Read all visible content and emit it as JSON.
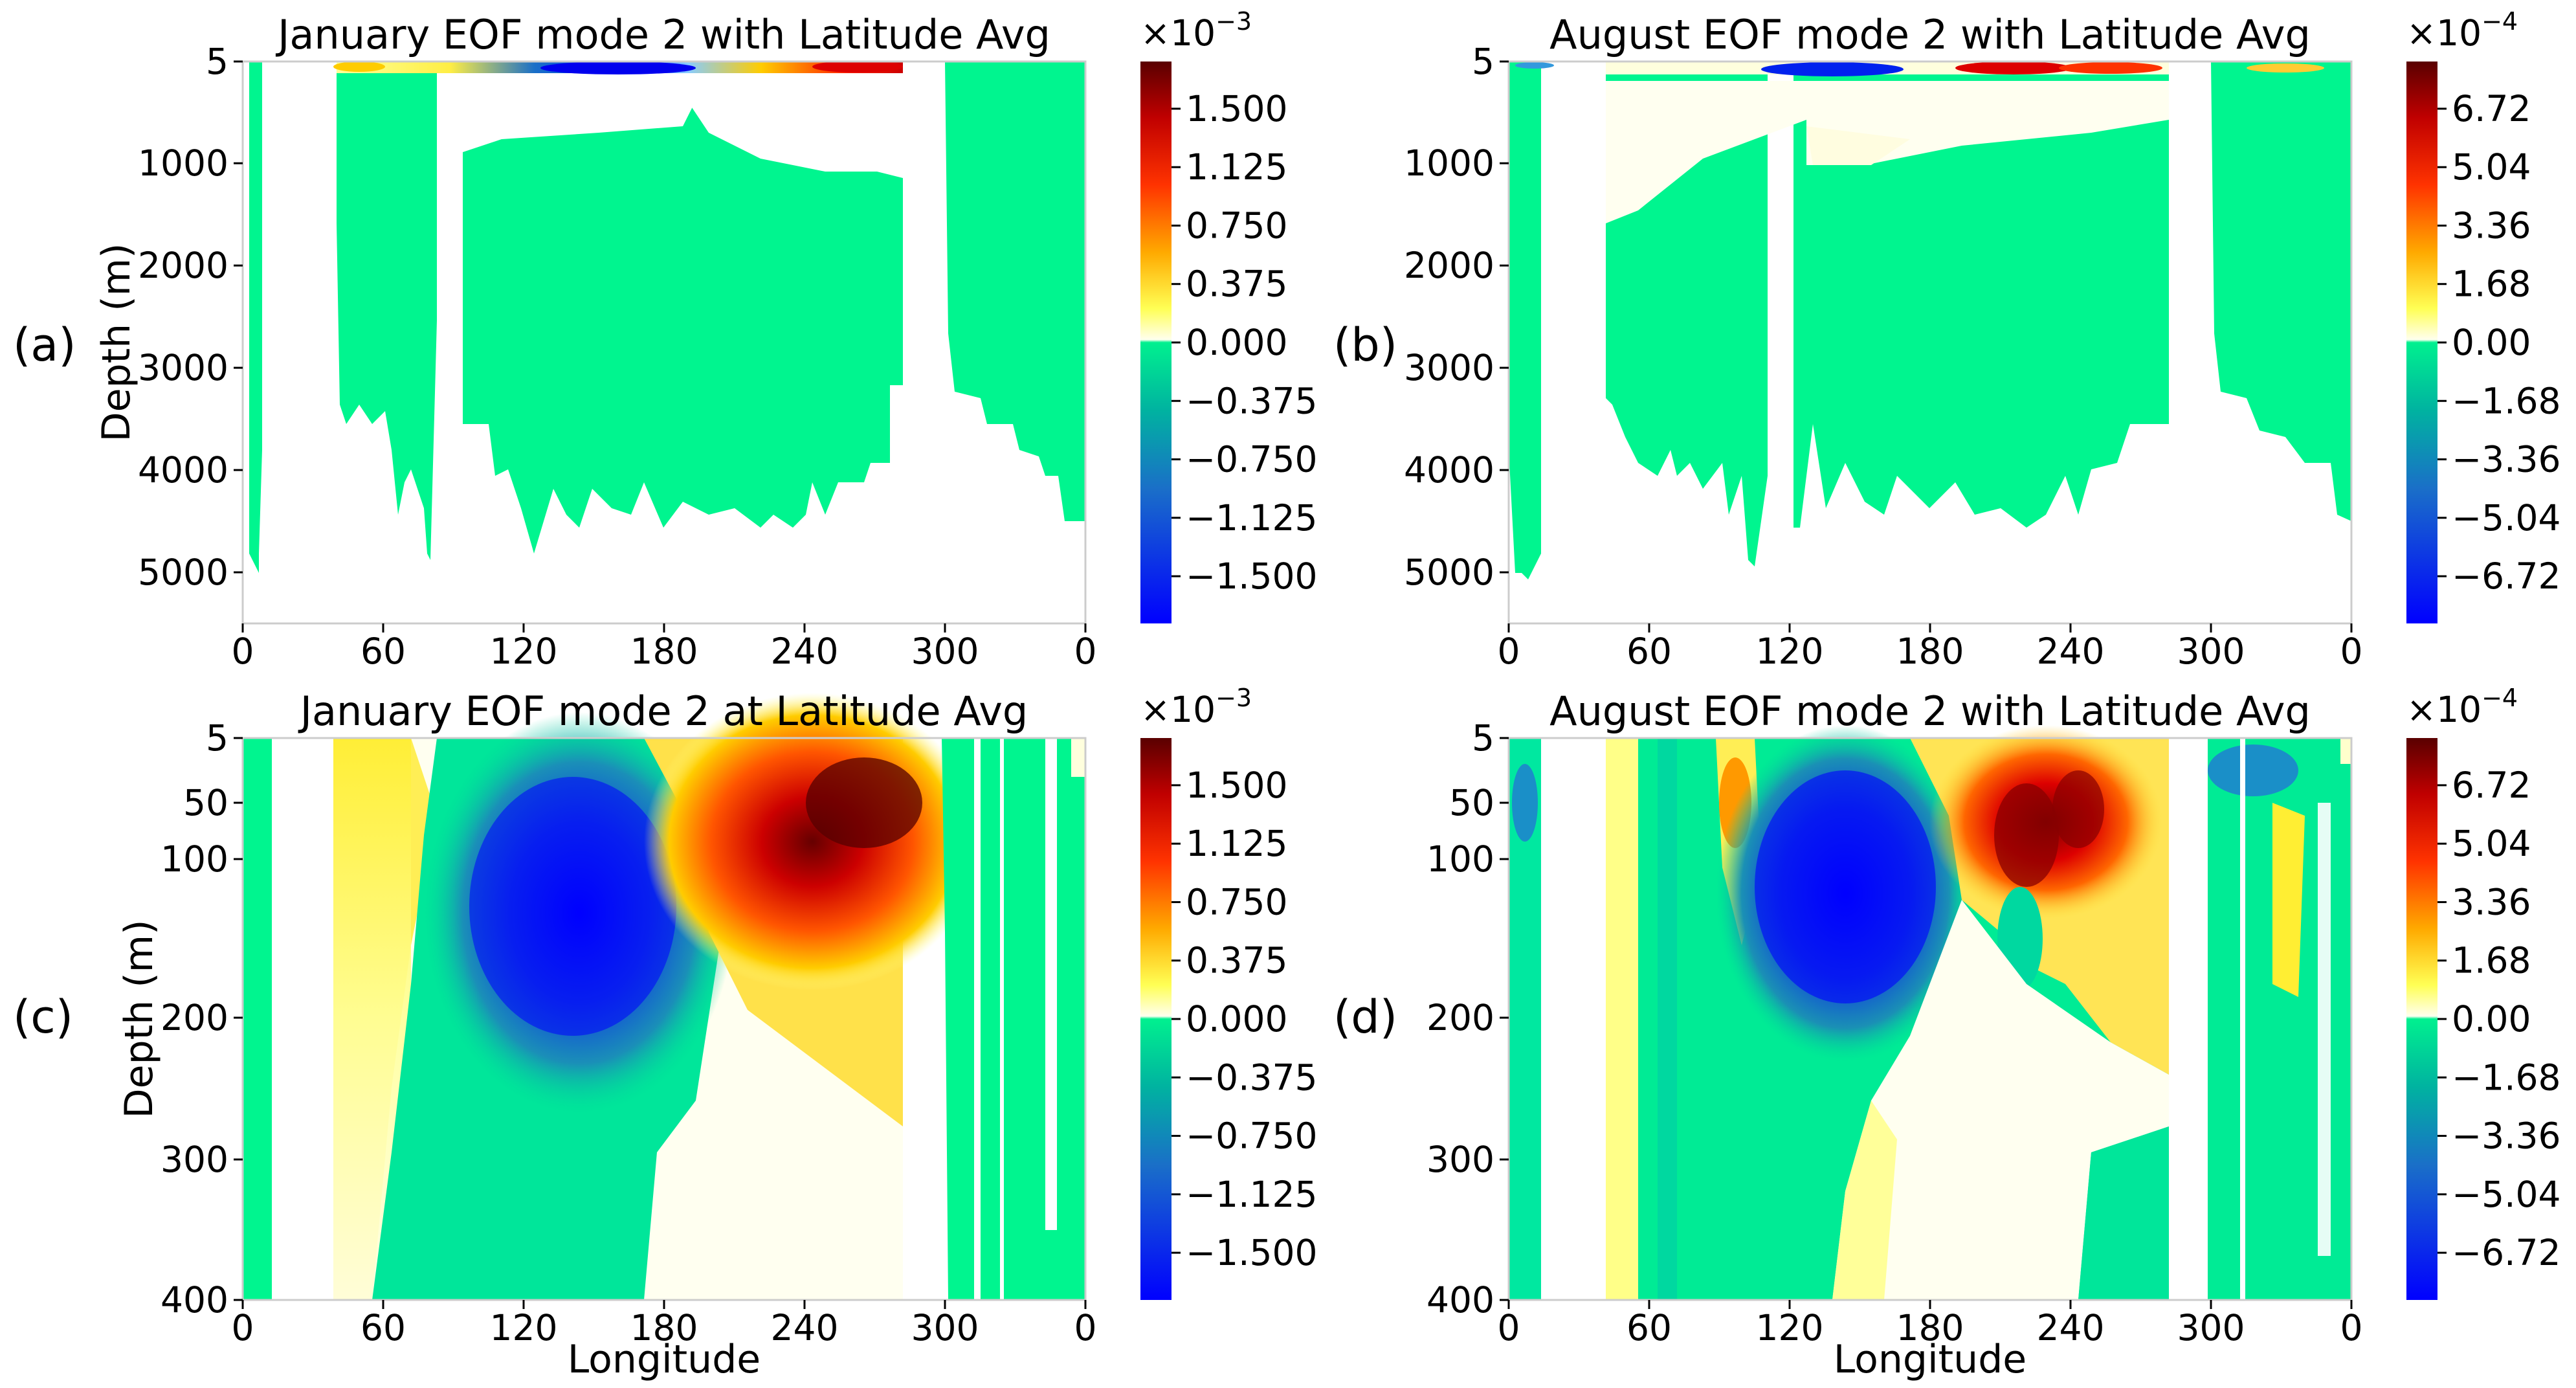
{
  "colors": {
    "neg_max": "#0000ff",
    "neg_mid": "#1a6fc8",
    "neg_min": "#00e88f",
    "pos_min": "#ffffe0",
    "pos_lo": "#ffff66",
    "pos_mid": "#ffaa00",
    "pos_hi": "#ff1a00",
    "pos_max": "#660000",
    "land": "#ffffff",
    "ocean_deep": "#00f58f"
  },
  "chart_data": [
    {
      "panel": "(a)",
      "type": "heatmap",
      "title": "January EOF mode 2 with Latitude Avg",
      "xlabel": "",
      "ylabel": "Depth (m)",
      "xticks": [
        "0",
        "60",
        "120",
        "180",
        "240",
        "300",
        "0"
      ],
      "xlim": [
        0,
        360
      ],
      "yticks": [
        "5",
        "1000",
        "2000",
        "3000",
        "4000",
        "5000"
      ],
      "ylim": [
        5,
        5500
      ],
      "colorbar": {
        "multiplier_base": "×10",
        "multiplier_exp": "−3",
        "ticks": [
          "1.500",
          "1.125",
          "0.750",
          "0.375",
          "0.000",
          "−0.375",
          "−0.750",
          "−1.125",
          "−1.500"
        ]
      }
    },
    {
      "panel": "(b)",
      "type": "heatmap",
      "title": "August EOF mode 2 with Latitude Avg",
      "xlabel": "",
      "ylabel": "",
      "xticks": [
        "0",
        "60",
        "120",
        "180",
        "240",
        "300",
        "0"
      ],
      "xlim": [
        0,
        360
      ],
      "yticks": [
        "5",
        "1000",
        "2000",
        "3000",
        "4000",
        "5000"
      ],
      "ylim": [
        5,
        5500
      ],
      "colorbar": {
        "multiplier_base": "×10",
        "multiplier_exp": "−4",
        "ticks": [
          "6.72",
          "5.04",
          "3.36",
          "1.68",
          "0.00",
          "−1.68",
          "−3.36",
          "−5.04",
          "−6.72"
        ]
      }
    },
    {
      "panel": "(c)",
      "type": "heatmap",
      "title": "January EOF mode 2 at Latitude Avg",
      "xlabel": "Longitude",
      "ylabel": "Depth (m)",
      "xticks": [
        "0",
        "60",
        "120",
        "180",
        "240",
        "300",
        "0"
      ],
      "xlim": [
        0,
        360
      ],
      "yticks": [
        "5",
        "50",
        "100",
        "200",
        "300",
        "400"
      ],
      "ylim": [
        5,
        400
      ],
      "colorbar": {
        "multiplier_base": "×10",
        "multiplier_exp": "−3",
        "ticks": [
          "1.500",
          "1.125",
          "0.750",
          "0.375",
          "0.000",
          "−0.375",
          "−0.750",
          "−1.125",
          "−1.500"
        ]
      }
    },
    {
      "panel": "(d)",
      "type": "heatmap",
      "title": "August EOF mode 2 with Latitude Avg",
      "xlabel": "Longitude",
      "ylabel": "",
      "xticks": [
        "0",
        "60",
        "120",
        "180",
        "240",
        "300",
        "0"
      ],
      "xlim": [
        0,
        360
      ],
      "yticks": [
        "5",
        "50",
        "100",
        "200",
        "300",
        "400"
      ],
      "ylim": [
        5,
        400
      ],
      "colorbar": {
        "multiplier_base": "×10",
        "multiplier_exp": "−4",
        "ticks": [
          "6.72",
          "5.04",
          "3.36",
          "1.68",
          "0.00",
          "−1.68",
          "−3.36",
          "−5.04",
          "−6.72"
        ]
      }
    }
  ]
}
